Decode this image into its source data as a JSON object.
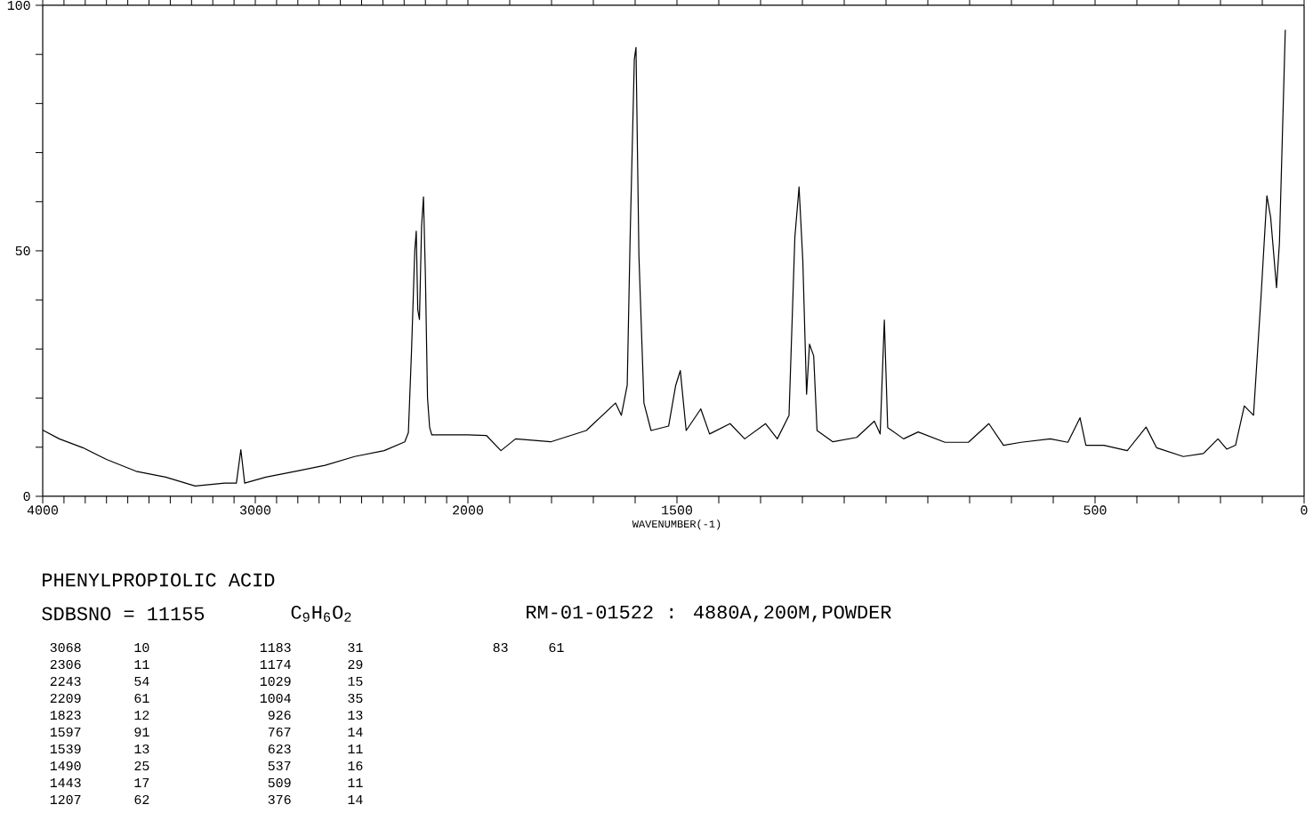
{
  "chart_data": [
    {
      "type": "line",
      "title": "PHENYLPROPIOLIC ACID",
      "annotations": [
        "SDBSNO = 11155",
        "C$_{9}$H$_{6}$O$_{2}$",
        "RM-01-01522 : 4880A,200M,POWDER",
        "3068",
        "10",
        "2306",
        "11",
        "2243",
        "54",
        "2209",
        "61",
        "1823",
        "12",
        "1597",
        "91",
        "1539",
        "13",
        "1490",
        "25",
        "1443",
        "17",
        "1207",
        "62",
        "1183",
        "31",
        "1174",
        "29",
        "1029",
        "15",
        "1004",
        "35",
        "926",
        "13",
        "767",
        "14",
        "623",
        "11",
        "537",
        "16",
        "509",
        "11",
        "376",
        "14",
        "83",
        "61"
      ],
      "x": [
        4000,
        3922,
        3811,
        3700,
        3561,
        3422,
        3283,
        3144,
        3089,
        3068,
        3050,
        2950,
        2811,
        2672,
        2533,
        2394,
        2297,
        2280,
        2265,
        2250,
        2243,
        2236,
        2228,
        2218,
        2209,
        2200,
        2190,
        2180,
        2170,
        2100,
        2000
      ],
      "values": [
        13.5,
        11.7,
        9.9,
        7.5,
        5.1,
        3.9,
        2.1,
        2.7,
        2.7,
        9.5,
        2.7,
        3.9,
        5.1,
        6.3,
        8.1,
        9.3,
        11.1,
        13,
        30,
        50,
        54,
        38,
        36,
        55,
        61,
        45,
        20,
        14,
        12.5,
        12.5,
        12.5
      ],
      "color": "#000000",
      "xlim": [
        4000,
        2000
      ],
      "ylim": [
        0,
        100
      ],
      "xticks": [
        4000,
        {
          "value": 3900,
          "label": null
        },
        {
          "value": 3800,
          "label": null
        },
        {
          "value": 3700,
          "label": null
        },
        {
          "value": 3600,
          "label": null
        },
        {
          "value": 3500,
          "label": null
        },
        {
          "value": 3400,
          "label": null
        },
        {
          "value": 3300,
          "label": null
        },
        {
          "value": 3200,
          "label": null
        },
        {
          "value": 3100,
          "label": null
        },
        3000,
        {
          "value": 2900,
          "label": null
        },
        {
          "value": 2800,
          "label": null
        },
        {
          "value": 2700,
          "label": null
        },
        {
          "value": 2600,
          "label": null
        },
        {
          "value": 2500,
          "label": null
        },
        {
          "value": 2400,
          "label": null
        },
        {
          "value": 2300,
          "label": null
        },
        {
          "value": 2200,
          "label": null
        },
        {
          "value": 2100,
          "label": null
        },
        2000
      ],
      "yticks": [
        0,
        {
          "value": 10,
          "label": null
        },
        {
          "value": 20,
          "label": null
        },
        {
          "value": 30,
          "label": null
        },
        {
          "value": 40,
          "label": null
        },
        50,
        {
          "value": 60,
          "label": null
        },
        {
          "value": 70,
          "label": null
        },
        {
          "value": 80,
          "label": null
        },
        {
          "value": 90,
          "label": null
        },
        100
      ]
    },
    {
      "type": "line",
      "xlabel": "WAVENUMBER(-1)",
      "x": [
        2000,
        1956,
        1921,
        1886,
        1802,
        1717,
        1647,
        1633,
        1619,
        1612,
        1602,
        1598,
        1591,
        1579,
        1562,
        1520,
        1503,
        1492,
        1478,
        1443,
        1422,
        1373,
        1338,
        1288,
        1260,
        1232,
        1218,
        1208,
        1199,
        1190,
        1183,
        1173,
        1165,
        1127,
        1070,
        1028,
        1014,
        1004,
        996,
        958,
        923,
        859,
        803,
        754,
        719,
        677,
        607,
        565,
        536,
        522,
        479,
        423,
        378,
        353,
        289,
        241,
        206,
        185,
        164,
        143,
        121,
        103,
        89,
        80,
        66,
        59,
        45
      ],
      "values": [
        12.5,
        12.4,
        9.3,
        11.7,
        11.1,
        13.4,
        19,
        16.5,
        22.6,
        52.8,
        89,
        91.4,
        49,
        19,
        13.4,
        14.3,
        22.6,
        25.6,
        13.4,
        17.8,
        12.7,
        14.8,
        11.7,
        14.8,
        11.7,
        16.5,
        52.8,
        63,
        48,
        20.8,
        31,
        28.6,
        13.4,
        11.1,
        12,
        15.3,
        12.7,
        35.9,
        14,
        11.7,
        13.1,
        11,
        11,
        14.8,
        10.4,
        11,
        11.7,
        11,
        16,
        10.4,
        10.4,
        9.3,
        14.1,
        9.9,
        8.1,
        8.7,
        11.7,
        9.6,
        10.4,
        18.4,
        16.5,
        40.7,
        61.2,
        56.8,
        42.5,
        51.6,
        95
      ],
      "color": "#000000",
      "xlim": [
        2000,
        0
      ],
      "ylim": [
        0,
        100
      ],
      "xticks": [
        {
          "value": 1900,
          "label": null
        },
        {
          "value": 1800,
          "label": null
        },
        {
          "value": 1700,
          "label": null
        },
        {
          "value": 1600,
          "label": null
        },
        1500,
        {
          "value": 1400,
          "label": null
        },
        {
          "value": 1300,
          "label": null
        },
        {
          "value": 1200,
          "label": null
        },
        {
          "value": 1100,
          "label": null
        },
        {
          "value": 1000,
          "label": null
        },
        {
          "value": 900,
          "label": null
        },
        {
          "value": 800,
          "label": null
        },
        {
          "value": 700,
          "label": null
        },
        {
          "value": 600,
          "label": null
        },
        500,
        {
          "value": 400,
          "label": null
        },
        {
          "value": 300,
          "label": null
        },
        {
          "value": 200,
          "label": null
        },
        {
          "value": 100,
          "label": null
        },
        0
      ],
      "tick_labels": "x"
    }
  ]
}
